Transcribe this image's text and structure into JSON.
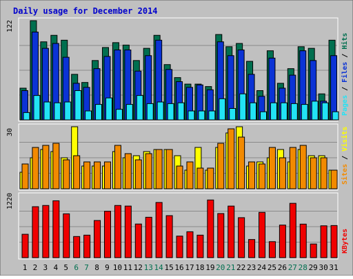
{
  "chart_data": {
    "type": "bar",
    "title": "Daily usage for December 2014",
    "categories": [
      "1",
      "2",
      "3",
      "4",
      "5",
      "6",
      "7",
      "8",
      "9",
      "10",
      "11",
      "12",
      "13",
      "14",
      "15",
      "16",
      "17",
      "18",
      "19",
      "20",
      "21",
      "22",
      "23",
      "24",
      "25",
      "26",
      "27",
      "28",
      "29",
      "30",
      "31"
    ],
    "weekend_days": [
      "6",
      "7",
      "13",
      "14",
      "20",
      "21",
      "27",
      "28"
    ],
    "panels": [
      {
        "id": "hits-files-pages",
        "ymax_label": "122",
        "ymax": 122,
        "right_labels": [
          "Pages",
          "Files",
          "Hits"
        ],
        "series": [
          {
            "name": "Hits",
            "values": [
              39,
              122,
              96,
              104,
              98,
              56,
              46,
              73,
              89,
              95,
              92,
              73,
              88,
              104,
              68,
              52,
              44,
              44,
              41,
              105,
              90,
              94,
              72,
              36,
              85,
              45,
              63,
              90,
              88,
              32,
              98
            ]
          },
          {
            "name": "Files",
            "values": [
              36,
              108,
              88,
              94,
              77,
              45,
              40,
              63,
              78,
              86,
              86,
              60,
              79,
              98,
              62,
              47,
              40,
              43,
              37,
              96,
              79,
              86,
              56,
              29,
              76,
              39,
              55,
              85,
              73,
              23,
              79
            ]
          },
          {
            "name": "Pages",
            "values": [
              9,
              30,
              22,
              21,
              22,
              36,
              11,
              19,
              27,
              13,
              19,
              30,
              20,
              22,
              20,
              21,
              11,
              11,
              11,
              26,
              14,
              32,
              21,
              10,
              21,
              21,
              20,
              19,
              23,
              21,
              10
            ]
          }
        ],
        "colors": [
          "#006f4f",
          "#0b33d5",
          "#22e3f5"
        ]
      },
      {
        "id": "visits-sites",
        "ymax_label": "30",
        "ymax": 30,
        "right_labels": [
          "Sites",
          "Visits"
        ],
        "series": [
          {
            "name": "Visits",
            "values": [
              8,
              15,
              19,
              18,
              15,
              30,
              11,
              11,
              11,
              18,
              15,
              16,
              18,
              19,
              19,
              16,
              9,
              20,
              9,
              20,
              27,
              30,
              11,
              13,
              15,
              19,
              13,
              19,
              16,
              16,
              9
            ]
          },
          {
            "name": "Sites",
            "values": [
              12,
              20,
              21,
              22,
              14,
              16,
              13,
              13,
              13,
              21,
              17,
              14,
              17,
              19,
              19,
              11,
              13,
              10,
              10,
              22,
              29,
              25,
              13,
              12,
              20,
              15,
              20,
              21,
              15,
              15,
              9
            ]
          }
        ],
        "colors": [
          "#ffff00",
          "#f28a00"
        ]
      },
      {
        "id": "kbytes",
        "ymax_label": "1220",
        "ymax": 1220,
        "right_labels": [
          "KBytes"
        ],
        "series": [
          {
            "name": "KBytes",
            "values": [
              460,
              1003,
              1027,
              1119,
              863,
              416,
              443,
              731,
              913,
              1027,
              1015,
              662,
              795,
              1086,
              827,
              424,
              510,
              443,
              1135,
              868,
              1015,
              787,
              357,
              891,
              315,
              641,
              1069,
              660,
              269,
              627,
              632
            ]
          }
        ],
        "colors": [
          "#f00000"
        ]
      }
    ]
  },
  "colors": {
    "background": "#c0c0c0",
    "frame": "#ffffff",
    "title": "#0000cc",
    "weekday_label": "#000000",
    "weekend_label": "#006f4f",
    "gridline": "#8a8a8a"
  }
}
